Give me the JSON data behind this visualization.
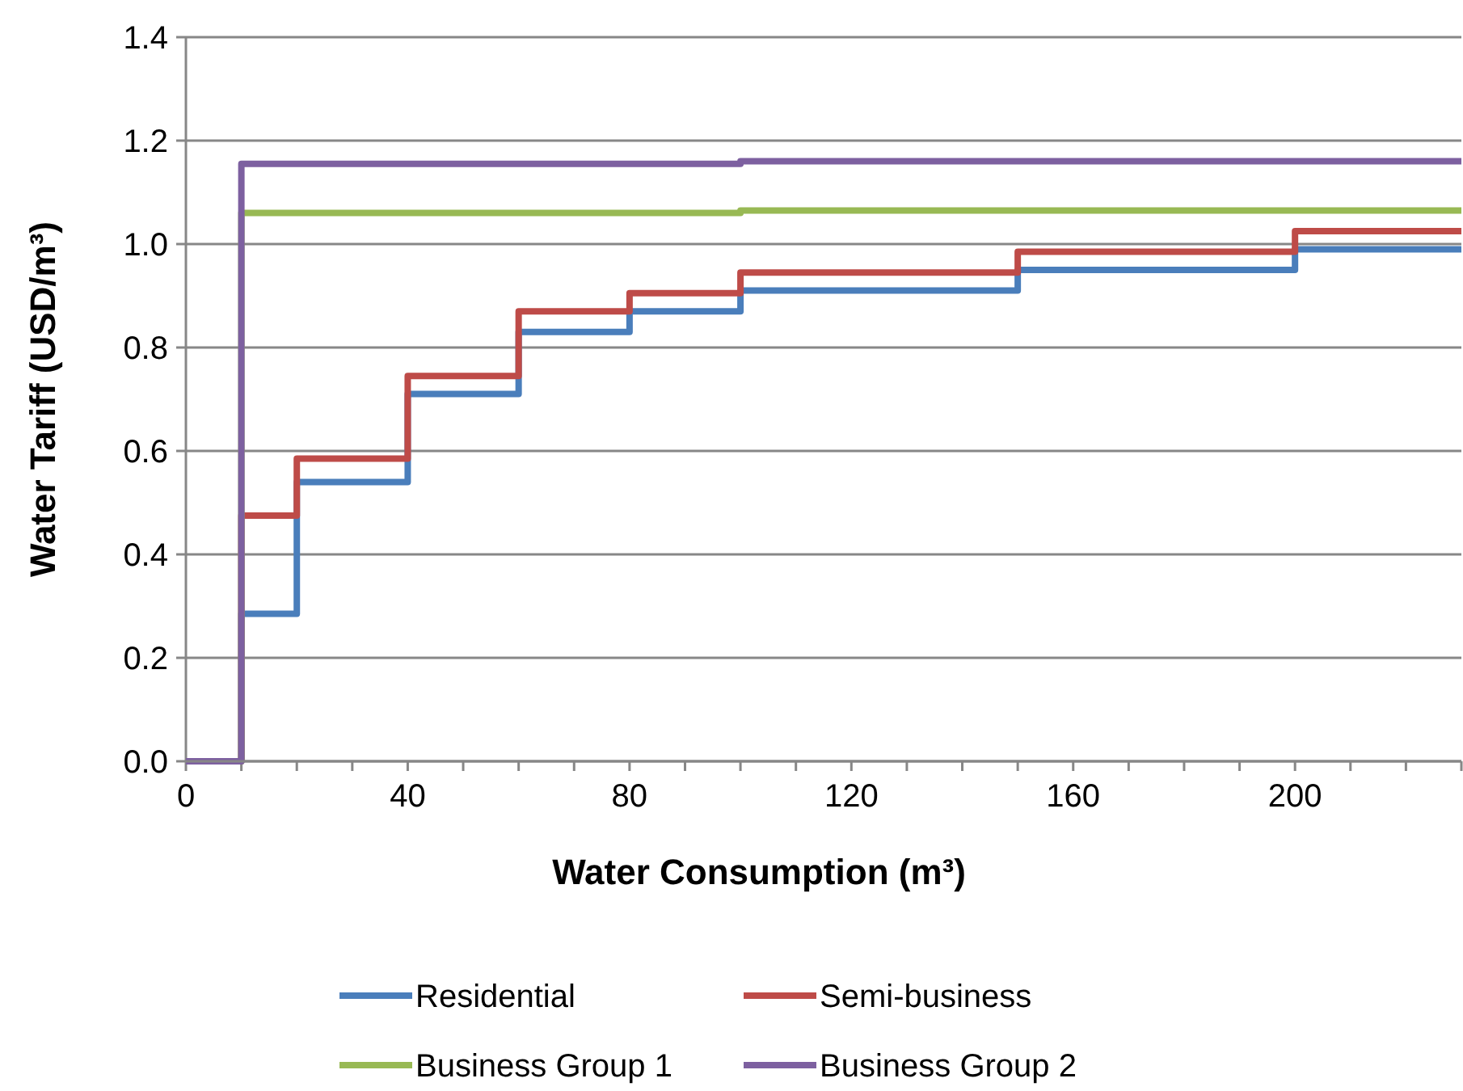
{
  "chart_data": {
    "type": "step",
    "xlabel": "Water Consumption (m³)",
    "ylabel": "Water Tariff (USD/m³)",
    "x": [
      0,
      10,
      20,
      40,
      60,
      80,
      100,
      150,
      200,
      230
    ],
    "series": [
      {
        "name": "Residential",
        "color": "#4a7ebb",
        "values": [
          0,
          0.285,
          0.54,
          0.71,
          0.83,
          0.87,
          0.91,
          0.95,
          0.99,
          0.99
        ]
      },
      {
        "name": "Semi-business",
        "color": "#be4b48",
        "values": [
          0,
          0.475,
          0.585,
          0.745,
          0.87,
          0.905,
          0.945,
          0.985,
          1.025,
          1.025
        ]
      },
      {
        "name": "Business Group 1",
        "color": "#98b954",
        "values": [
          0,
          1.06,
          1.06,
          1.06,
          1.06,
          1.06,
          1.065,
          1.065,
          1.065,
          1.065
        ]
      },
      {
        "name": "Business Group 2",
        "color": "#7d60a0",
        "values": [
          0,
          1.155,
          1.155,
          1.155,
          1.155,
          1.155,
          1.16,
          1.16,
          1.16,
          1.16
        ]
      }
    ],
    "xlim": [
      0,
      230
    ],
    "xticks": [
      0,
      {
        "value": 10,
        "label": null
      },
      {
        "value": 20,
        "label": null
      },
      {
        "value": 30,
        "label": null
      },
      40,
      {
        "value": 50,
        "label": null
      },
      {
        "value": 60,
        "label": null
      },
      {
        "value": 70,
        "label": null
      },
      80,
      {
        "value": 90,
        "label": null
      },
      {
        "value": 100,
        "label": null
      },
      {
        "value": 110,
        "label": null
      },
      120,
      {
        "value": 130,
        "label": null
      },
      {
        "value": 140,
        "label": null
      },
      {
        "value": 150,
        "label": null
      },
      160,
      {
        "value": 170,
        "label": null
      },
      {
        "value": 180,
        "label": null
      },
      {
        "value": 190,
        "label": null
      },
      200,
      {
        "value": 210,
        "label": null
      },
      {
        "value": 220,
        "label": null
      },
      {
        "value": 230,
        "label": null
      }
    ],
    "ylim": [
      0,
      1.4
    ],
    "yticks": [
      {
        "value": 0,
        "label": "0.0"
      },
      {
        "value": 0.2,
        "label": "0.2"
      },
      {
        "value": 0.4,
        "label": "0.4"
      },
      {
        "value": 0.6,
        "label": "0.6"
      },
      {
        "value": 0.8,
        "label": "0.8"
      },
      {
        "value": 1,
        "label": "1.0"
      },
      {
        "value": 1.2,
        "label": "1.2"
      },
      {
        "value": 1.4,
        "label": "1.4"
      }
    ],
    "grid": "y",
    "legend": "bottom"
  }
}
